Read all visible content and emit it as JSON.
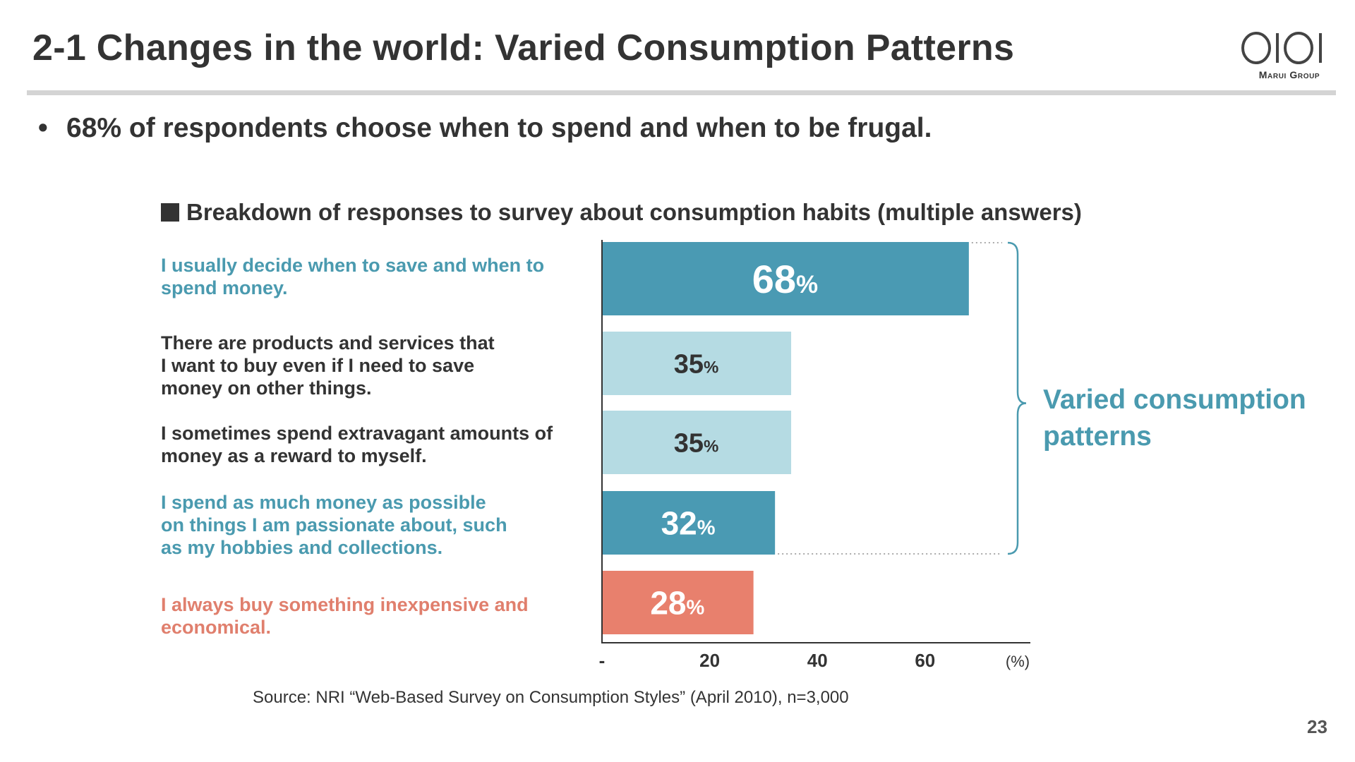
{
  "slide": {
    "title": "2-1 Changes in the world: Varied Consumption Patterns",
    "logo_text": "Marui Group",
    "bullet": "68% of respondents choose when to spend and when to be frugal.",
    "chart_heading": "Breakdown of responses to survey about consumption habits (multiple answers)",
    "bracket_label": "Varied consumption patterns",
    "source": "Source: NRI “Web-Based Survey on Consumption Styles” (April 2010), n=3,000",
    "page_number": "23"
  },
  "colors": {
    "teal_dark": "#4a9ab3",
    "teal_light": "#b5dbe3",
    "salmon": "#e8806d",
    "label_teal": "#4a9aaf",
    "label_salmon": "#e07f6d",
    "label_dark": "#333333"
  },
  "chart_data": {
    "type": "bar",
    "orientation": "horizontal",
    "categories": [
      "I usually decide when to save and when to spend money.",
      "There are products and services that I want to buy even if I need to save money on other things.",
      "I sometimes spend extravagant amounts of money as a reward to myself.",
      "I spend as much money as possible on things I am passionate about, such as my hobbies and collections.",
      "I always buy something inexpensive and economical."
    ],
    "values": [
      68,
      35,
      35,
      32,
      28
    ],
    "data_labels": [
      "68",
      "35",
      "35",
      "32",
      "28"
    ],
    "data_label_unit": "%",
    "bar_colors": [
      "#4a9ab3",
      "#b5dbe3",
      "#b5dbe3",
      "#4a9ab3",
      "#e8806d"
    ],
    "data_label_colors": [
      "#ffffff",
      "#333333",
      "#333333",
      "#ffffff",
      "#ffffff"
    ],
    "label_colors": [
      "#4a9aaf",
      "#333333",
      "#333333",
      "#4a9aaf",
      "#e07f6d"
    ],
    "x_ticks": [
      "-",
      "20",
      "40",
      "60"
    ],
    "x_tick_values": [
      0,
      20,
      40,
      60
    ],
    "x_unit": "(%)",
    "xlim": [
      0,
      80
    ],
    "grid": false,
    "legend": "none"
  }
}
